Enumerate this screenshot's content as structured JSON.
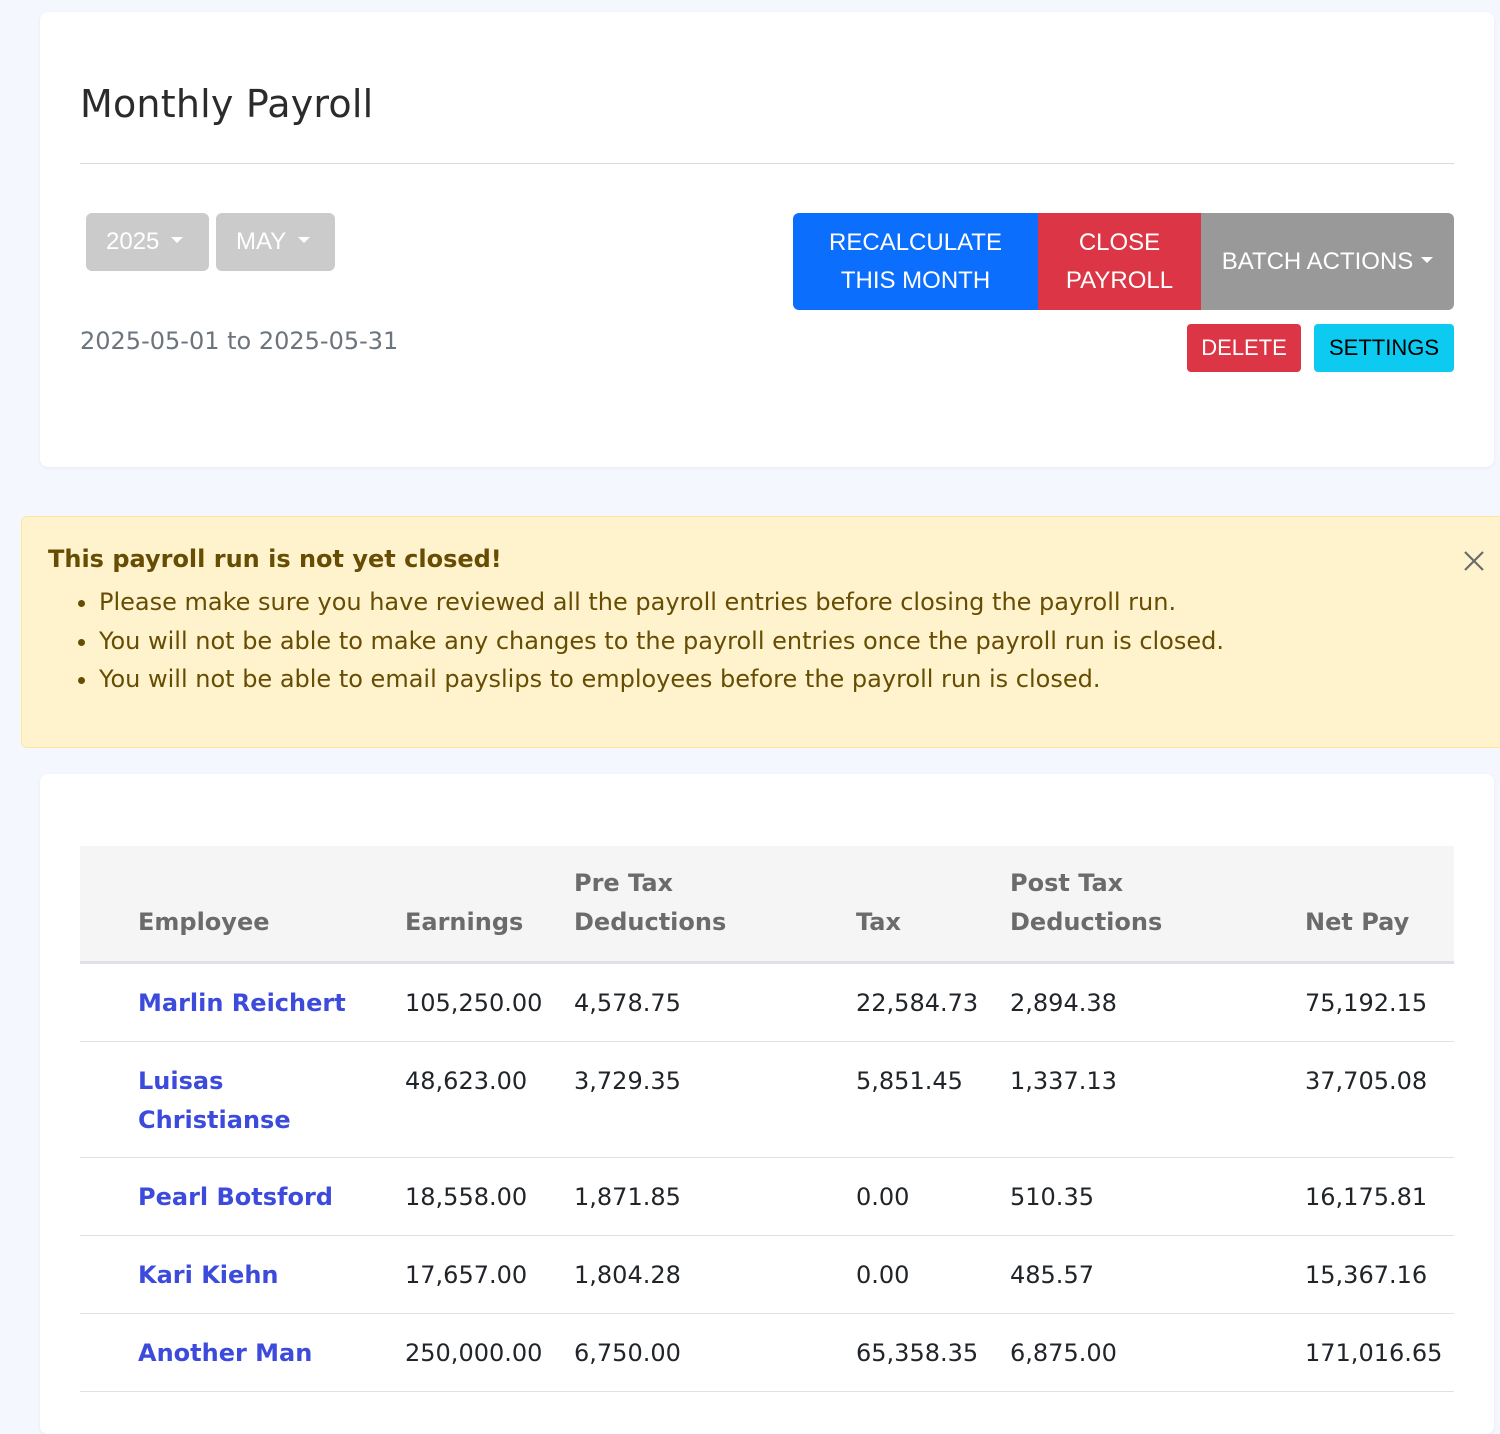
{
  "header": {
    "title": "Monthly Payroll",
    "year_selected": "2025",
    "month_selected": "MAY",
    "date_range": "2025-05-01 to 2025-05-31",
    "buttons": {
      "recalculate_line1": "RECALCULATE",
      "recalculate_line2": "THIS MONTH",
      "close_line1": "CLOSE",
      "close_line2": "PAYROLL",
      "batch_actions": "BATCH ACTIONS",
      "delete": "DELETE",
      "settings": "SETTINGS"
    }
  },
  "alert": {
    "title": "This payroll run is not yet closed!",
    "items": [
      "Please make sure you have reviewed all the payroll entries before closing the payroll run.",
      "You will not be able to make any changes to the payroll entries once the payroll run is closed.",
      "You will not be able to email payslips to employees before the payroll run is closed."
    ]
  },
  "table": {
    "columns": {
      "employee": "Employee",
      "earnings": "Earnings",
      "pre_tax_line1": "Pre Tax",
      "pre_tax_line2": "Deductions",
      "tax": "Tax",
      "post_tax_line1": "Post Tax",
      "post_tax_line2": "Deductions",
      "net_pay": "Net Pay"
    },
    "rows": [
      {
        "employee_line1": "Marlin Reichert",
        "employee_line2": "",
        "earnings": "105,250.00",
        "pre_tax": "4,578.75",
        "tax": "22,584.73",
        "post_tax": "2,894.38",
        "net_pay": "75,192.15"
      },
      {
        "employee_line1": "Luisas",
        "employee_line2": "Christianse",
        "earnings": "48,623.00",
        "pre_tax": "3,729.35",
        "tax": "5,851.45",
        "post_tax": "1,337.13",
        "net_pay": "37,705.08"
      },
      {
        "employee_line1": "Pearl Botsford",
        "employee_line2": "",
        "earnings": "18,558.00",
        "pre_tax": "1,871.85",
        "tax": "0.00",
        "post_tax": "510.35",
        "net_pay": "16,175.81"
      },
      {
        "employee_line1": "Kari Kiehn",
        "employee_line2": "",
        "earnings": "17,657.00",
        "pre_tax": "1,804.28",
        "tax": "0.00",
        "post_tax": "485.57",
        "net_pay": "15,367.16"
      },
      {
        "employee_line1": "Another Man",
        "employee_line2": "",
        "earnings": "250,000.00",
        "pre_tax": "6,750.00",
        "tax": "65,358.35",
        "post_tax": "6,875.00",
        "net_pay": "171,016.65"
      }
    ]
  },
  "colors": {
    "primary": "#0b6efd",
    "danger": "#dc3545",
    "secondary": "#999999",
    "info": "#0dcaf0",
    "warning_bg": "#fff3cd",
    "link": "#3d4bdc"
  }
}
